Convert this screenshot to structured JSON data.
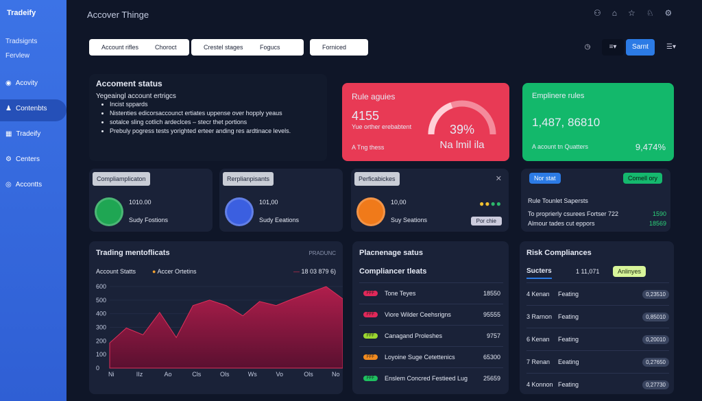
{
  "brand": "Tradeify",
  "sidebar": {
    "top": [
      "Tradsignts",
      "Fervlew"
    ],
    "items": [
      "Acovity",
      "Contenbts",
      "Tradeify",
      "Centers",
      "Accontts"
    ]
  },
  "header": {
    "title": "Accover Thinge"
  },
  "filters": {
    "buttons": [
      "Account rifles",
      "Choroct",
      "Crestel stages",
      "Fogucs",
      "Forniced"
    ],
    "action": "Sarnt"
  },
  "account_status": {
    "title": "Accoment status",
    "subtitle": "Yegeaingl account ertrigcs",
    "bullets": [
      "Incist sppards",
      "Nistenties edicorsaccounct ertiates uppense over hopply yeaus",
      "sotalce sling cotlich ardeclces – stecr thet portions",
      "Prebuly pogress tests yorighted erteer anding res ardtinace levels."
    ]
  },
  "rule_card": {
    "title": "Rule aguies",
    "value": "4155",
    "caption": "Yue orther erebabtent",
    "gauge": {
      "value": 39,
      "label": "39%"
    },
    "gauge_label": "Na lmil ila",
    "footer": "A Tng thess"
  },
  "compliance_card": {
    "title": "Emplinere rules",
    "value": "1,487, 86810",
    "footer": "A acount tn Quatters",
    "percent": "9,474%"
  },
  "mini_cards": [
    {
      "tag": "Compliamplicaton",
      "value": "1010.00",
      "label": "Sudy Fostions"
    },
    {
      "tag": "Rerplianpisants",
      "value": "101,00",
      "label": "Sudy Eeations"
    },
    {
      "tag": "Perficabickes",
      "value": "10,00",
      "label": "Suy Seations",
      "button": "Por chie"
    }
  ],
  "rules_panel": {
    "badge1": "Nor stat",
    "badge2": "Comell ory",
    "title": "Rule Tounlet Sapersts",
    "rows": [
      {
        "name": "To proprierly csurees Fortser 722",
        "value": "1590"
      },
      {
        "name": "Almour tades cut eppors",
        "value": "18569"
      }
    ]
  },
  "trading": {
    "title": "Trading mentoflicats",
    "tag": "PRADUNC",
    "legend": [
      "Account Statts",
      "Accer Ortetins"
    ],
    "legend_right": "18 03 879 6)",
    "chart": {
      "type": "area",
      "x_labels": [
        "Ni",
        "IIz",
        "Ao",
        "Cls",
        "Ols",
        "Ws",
        "Vo",
        "Ols",
        "No"
      ],
      "values": [
        185,
        295,
        245,
        410,
        225,
        460,
        500,
        460,
        385,
        490,
        460,
        510,
        555,
        600,
        510
      ],
      "ylim": [
        0,
        600
      ],
      "yticks": [
        0,
        100,
        200,
        300,
        400,
        500,
        600
      ]
    }
  },
  "placement": {
    "title": "Placnenage satus",
    "subtitle": "Compliancer tleats",
    "rows": [
      {
        "badge": "FFF",
        "name": "Tone Teyes",
        "value": "18550"
      },
      {
        "badge": "FFF",
        "name": "Viore Wilder Ceehsrigns",
        "value": "95555"
      },
      {
        "badge": "FFF",
        "name": "Canagand Proleshes",
        "value": "9757"
      },
      {
        "badge": "FFF",
        "name": "Loyoine Suge Cetettenics",
        "value": "65300"
      },
      {
        "badge": "FFF",
        "name": "Enslem Concred Festieed Lug",
        "value": "25659"
      }
    ]
  },
  "risk": {
    "title": "Risk Compliances",
    "tab": "Sucters",
    "count": "1 11,071",
    "button": "Anlinyes",
    "rows": [
      {
        "id": "4 Kenan",
        "status": "Feating",
        "value": "0,23510"
      },
      {
        "id": "3 Rarnon",
        "status": "Feating",
        "value": "0,85010"
      },
      {
        "id": "6 Kenan",
        "status": "Feating",
        "value": "0,20010"
      },
      {
        "id": "7 Renan",
        "status": "Eeating",
        "value": "0,27650"
      },
      {
        "id": "4 Konnon",
        "status": "Feating",
        "value": "0,27730"
      }
    ]
  }
}
